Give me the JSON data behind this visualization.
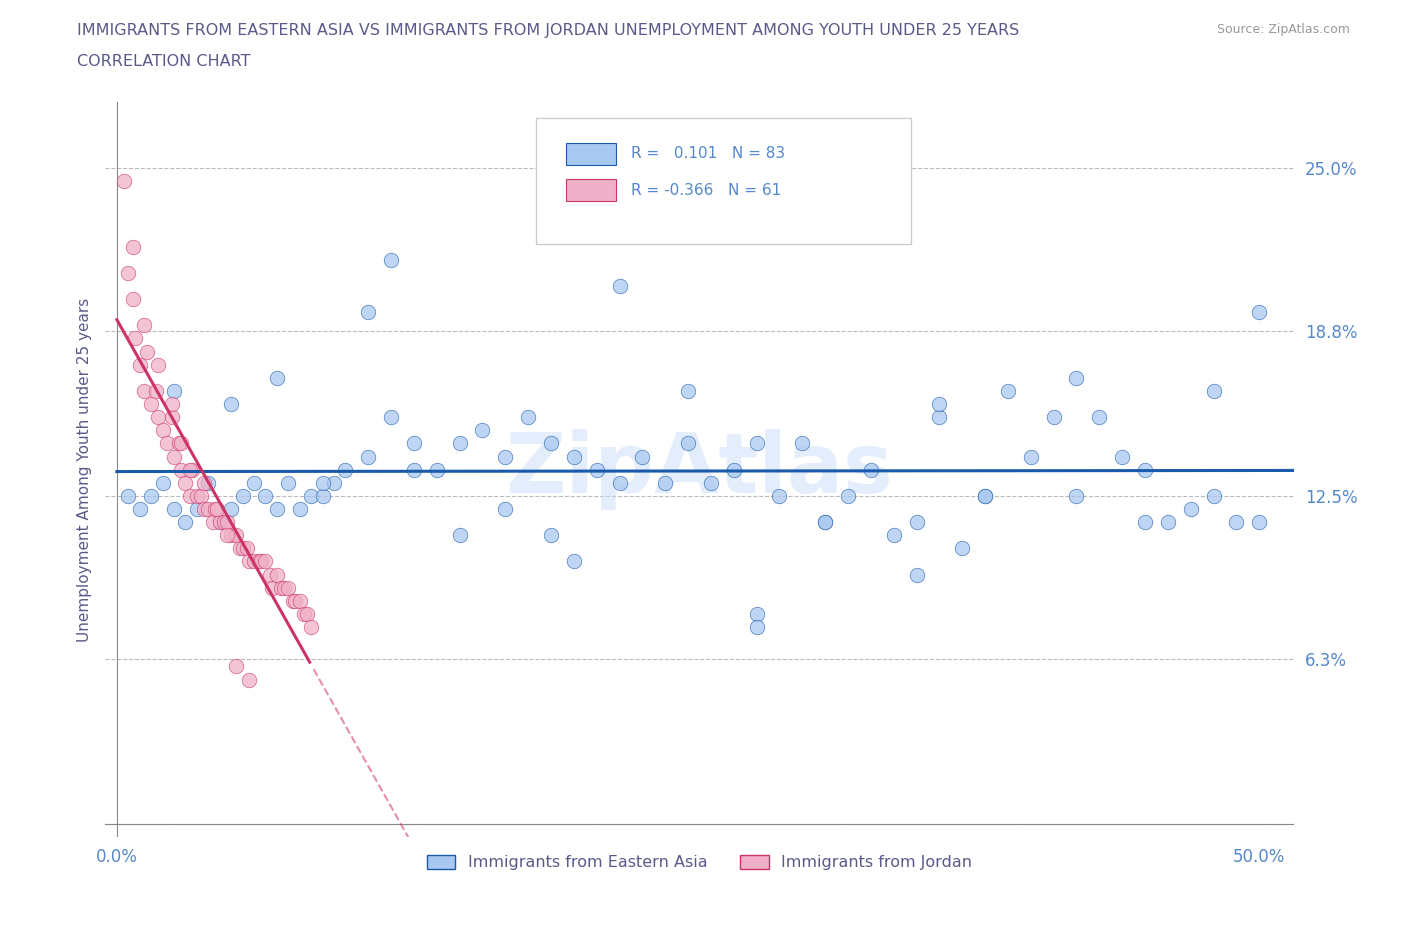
{
  "title_line1": "IMMIGRANTS FROM EASTERN ASIA VS IMMIGRANTS FROM JORDAN UNEMPLOYMENT AMONG YOUTH UNDER 25 YEARS",
  "title_line2": "CORRELATION CHART",
  "source": "Source: ZipAtlas.com",
  "ylabel": "Unemployment Among Youth under 25 years",
  "title_color": "#5a5a8a",
  "axis_label_color": "#5a5a8a",
  "tick_color": "#5588cc",
  "dot_color_blue": "#a8c8f0",
  "dot_color_pink": "#f0b0c8",
  "line_color_blue": "#1a5aaa",
  "line_color_pink": "#cc3366",
  "watermark_color": "#c8ddf8",
  "xlim": [
    -0.005,
    0.515
  ],
  "ylim": [
    -0.005,
    0.275
  ],
  "y_ticks": [
    0.0,
    0.063,
    0.125,
    0.188,
    0.25
  ],
  "y_tick_labels": [
    "",
    "6.3%",
    "12.5%",
    "18.8%",
    "25.0%"
  ],
  "x_tick_positions": [
    0.0,
    0.5
  ],
  "x_tick_labels": [
    "0.0%",
    "50.0%"
  ],
  "blue_dots_x": [
    0.005,
    0.01,
    0.015,
    0.02,
    0.025,
    0.03,
    0.035,
    0.04,
    0.045,
    0.05,
    0.055,
    0.06,
    0.065,
    0.07,
    0.075,
    0.08,
    0.085,
    0.09,
    0.095,
    0.1,
    0.11,
    0.12,
    0.13,
    0.14,
    0.15,
    0.16,
    0.17,
    0.18,
    0.19,
    0.2,
    0.21,
    0.22,
    0.23,
    0.24,
    0.25,
    0.26,
    0.27,
    0.28,
    0.29,
    0.3,
    0.31,
    0.32,
    0.33,
    0.34,
    0.35,
    0.36,
    0.37,
    0.38,
    0.39,
    0.4,
    0.41,
    0.42,
    0.43,
    0.44,
    0.45,
    0.46,
    0.47,
    0.48,
    0.49,
    0.5,
    0.025,
    0.05,
    0.07,
    0.09,
    0.11,
    0.13,
    0.15,
    0.17,
    0.19,
    0.22,
    0.25,
    0.28,
    0.31,
    0.35,
    0.38,
    0.42,
    0.45,
    0.48,
    0.5,
    0.36,
    0.28,
    0.2,
    0.12
  ],
  "blue_dots_y": [
    0.125,
    0.12,
    0.125,
    0.13,
    0.12,
    0.115,
    0.12,
    0.13,
    0.115,
    0.12,
    0.125,
    0.13,
    0.125,
    0.12,
    0.13,
    0.12,
    0.125,
    0.125,
    0.13,
    0.135,
    0.14,
    0.155,
    0.145,
    0.135,
    0.145,
    0.15,
    0.14,
    0.155,
    0.145,
    0.14,
    0.135,
    0.13,
    0.14,
    0.13,
    0.145,
    0.13,
    0.135,
    0.145,
    0.125,
    0.145,
    0.115,
    0.125,
    0.135,
    0.11,
    0.115,
    0.155,
    0.105,
    0.125,
    0.165,
    0.14,
    0.155,
    0.17,
    0.155,
    0.14,
    0.135,
    0.115,
    0.12,
    0.165,
    0.115,
    0.115,
    0.165,
    0.16,
    0.17,
    0.13,
    0.195,
    0.135,
    0.11,
    0.12,
    0.11,
    0.205,
    0.165,
    0.08,
    0.115,
    0.095,
    0.125,
    0.125,
    0.115,
    0.125,
    0.195,
    0.16,
    0.075,
    0.1,
    0.215
  ],
  "pink_dots_x": [
    0.003,
    0.005,
    0.007,
    0.008,
    0.01,
    0.012,
    0.013,
    0.015,
    0.017,
    0.018,
    0.02,
    0.022,
    0.024,
    0.025,
    0.027,
    0.028,
    0.03,
    0.032,
    0.033,
    0.035,
    0.037,
    0.038,
    0.04,
    0.042,
    0.043,
    0.045,
    0.047,
    0.048,
    0.05,
    0.052,
    0.054,
    0.055,
    0.057,
    0.058,
    0.06,
    0.062,
    0.063,
    0.065,
    0.067,
    0.068,
    0.07,
    0.072,
    0.073,
    0.075,
    0.077,
    0.078,
    0.08,
    0.082,
    0.083,
    0.085,
    0.007,
    0.012,
    0.018,
    0.024,
    0.028,
    0.032,
    0.038,
    0.044,
    0.048,
    0.052,
    0.058
  ],
  "pink_dots_y": [
    0.245,
    0.21,
    0.2,
    0.185,
    0.175,
    0.165,
    0.18,
    0.16,
    0.165,
    0.155,
    0.15,
    0.145,
    0.155,
    0.14,
    0.145,
    0.135,
    0.13,
    0.125,
    0.135,
    0.125,
    0.125,
    0.12,
    0.12,
    0.115,
    0.12,
    0.115,
    0.115,
    0.115,
    0.11,
    0.11,
    0.105,
    0.105,
    0.105,
    0.1,
    0.1,
    0.1,
    0.1,
    0.1,
    0.095,
    0.09,
    0.095,
    0.09,
    0.09,
    0.09,
    0.085,
    0.085,
    0.085,
    0.08,
    0.08,
    0.075,
    0.22,
    0.19,
    0.175,
    0.16,
    0.145,
    0.135,
    0.13,
    0.12,
    0.11,
    0.06,
    0.055
  ]
}
